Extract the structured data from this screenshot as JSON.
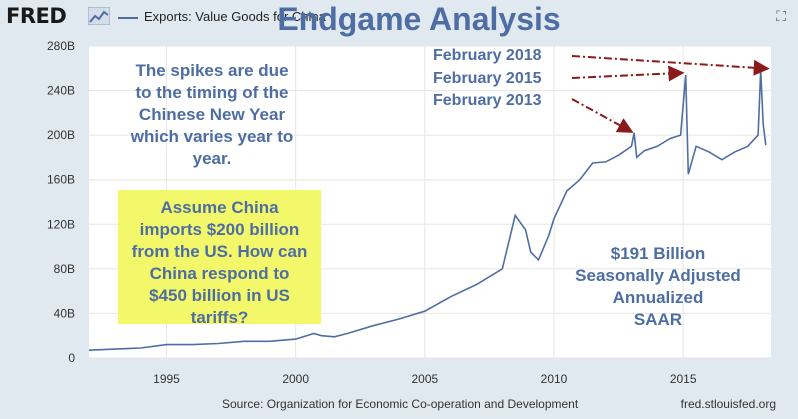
{
  "header": {
    "logo": "FRED",
    "legend_label": "Exports: Value Goods for China",
    "title": "Endgame Analysis",
    "expand_icon": "expand-icon"
  },
  "footer": {
    "source": "Source: Organization for Economic Co-operation and Development",
    "credit": "fred.stlouisfed.org"
  },
  "annotations": {
    "spikes_note": [
      "The spikes are due",
      "to the timing of the",
      "Chinese New Year",
      "which varies year to",
      "year."
    ],
    "box_note": [
      "Assume China",
      "imports $200 billion",
      "from the US. How can",
      "China respond to",
      "$450 billion in US",
      "tariffs?"
    ],
    "value_note": [
      "$191 Billion",
      "Seasonally Adjusted",
      "Annualized",
      "SAAR"
    ],
    "arrow_labels": [
      "February 2018",
      "February 2015",
      "February 2013"
    ]
  },
  "colors": {
    "series": "#4e6ea3",
    "arrow": "#8b1a1a",
    "highlight": "#f3f86a",
    "background": "#e1e9f0"
  },
  "chart_data": {
    "type": "line",
    "title": "Endgame Analysis",
    "xlabel": "",
    "ylabel": "",
    "xlim": [
      1992,
      2018.4
    ],
    "ylim": [
      0,
      280
    ],
    "y_ticks": [
      "0",
      "40B",
      "80B",
      "120B",
      "160B",
      "200B",
      "240B",
      "280B"
    ],
    "x_ticks": [
      "1995",
      "2000",
      "2005",
      "2010",
      "2015"
    ],
    "grid": true,
    "legend": "top-left",
    "series": [
      {
        "name": "Exports: Value Goods for China",
        "unit": "Billions of US Dollars",
        "x": [
          1992.0,
          1993.0,
          1994.0,
          1995.0,
          1996.0,
          1997.0,
          1998.0,
          1999.0,
          2000.0,
          2000.7,
          2001.0,
          2001.5,
          2002.0,
          2003.0,
          2004.0,
          2005.0,
          2006.0,
          2007.0,
          2008.0,
          2008.5,
          2008.9,
          2009.1,
          2009.4,
          2009.8,
          2010.0,
          2010.5,
          2011.0,
          2011.5,
          2012.0,
          2012.5,
          2013.0,
          2013.1,
          2013.2,
          2013.5,
          2014.0,
          2014.5,
          2014.9,
          2015.1,
          2015.2,
          2015.5,
          2016.0,
          2016.5,
          2017.0,
          2017.5,
          2017.9,
          2018.0,
          2018.1,
          2018.2
        ],
        "y": [
          7,
          8,
          9,
          12,
          12,
          13,
          15,
          15,
          17,
          22,
          20,
          19,
          22,
          29,
          35,
          42,
          55,
          66,
          80,
          128,
          115,
          95,
          88,
          110,
          125,
          150,
          160,
          175,
          176,
          182,
          190,
          202,
          180,
          186,
          190,
          197,
          200,
          254,
          165,
          190,
          185,
          178,
          185,
          190,
          200,
          258,
          210,
          191
        ]
      }
    ]
  }
}
